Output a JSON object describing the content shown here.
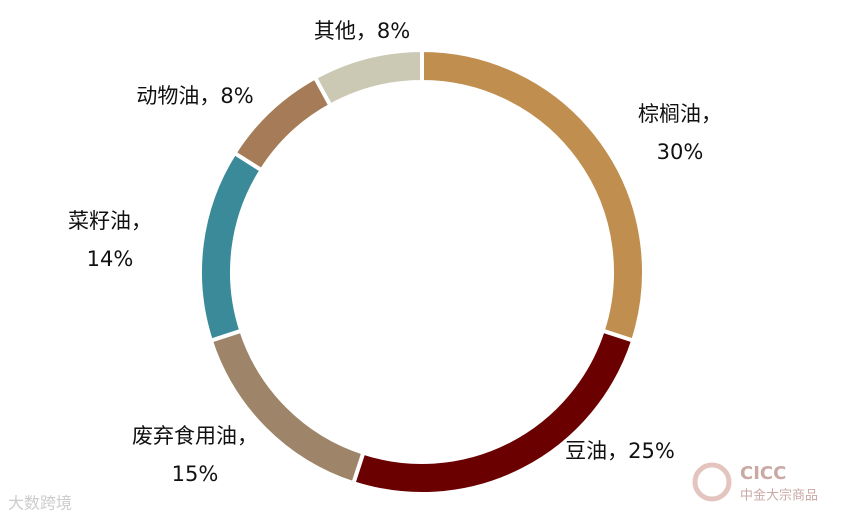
{
  "chart_data": {
    "type": "donut",
    "categories": [
      "棕榈油",
      "豆油",
      "废弃食用油",
      "菜籽油",
      "动物油",
      "其他"
    ],
    "values": [
      30,
      25,
      15,
      14,
      8,
      8
    ],
    "value_labels": [
      "30%",
      "25%",
      "15%",
      "14%",
      "8%",
      "8%"
    ],
    "label_separator": "，",
    "colors": [
      "#C08F50",
      "#6B0000",
      "#9E8468",
      "#3A8A99",
      "#A57C57",
      "#CBC9B4"
    ]
  },
  "watermarks": [
    "大数跨境",
    "CICC",
    "中金大宗商品"
  ]
}
